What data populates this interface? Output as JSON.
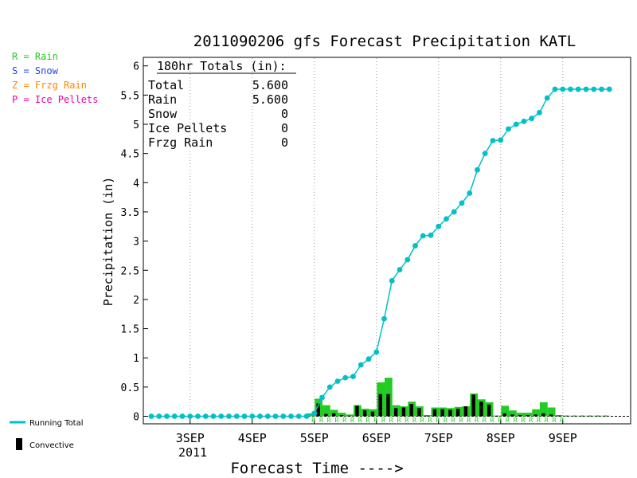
{
  "chart_data": {
    "type": "bar",
    "title": "2011090206 gfs Forecast Precipitation KATL",
    "xlabel": "Forecast Time ---->",
    "ylabel": "Precipitation (in)",
    "ylim": [
      0,
      6.2
    ],
    "y_ticks": [
      "0",
      "0.5",
      "1",
      "1.5",
      "2",
      "2.5",
      "3",
      "3.5",
      "4",
      "4.5",
      "5",
      "5.5",
      "6"
    ],
    "x_ticks": [
      {
        "label": "3SEP",
        "hour": 18
      },
      {
        "label": "4SEP",
        "hour": 42
      },
      {
        "label": "5SEP",
        "hour": 66
      },
      {
        "label": "6SEP",
        "hour": 90
      },
      {
        "label": "7SEP",
        "hour": 114
      },
      {
        "label": "8SEP",
        "hour": 138
      },
      {
        "label": "9SEP",
        "hour": 162
      }
    ],
    "year_label": "2011",
    "grid": "dotted vertical at day ticks",
    "legend_types": [
      {
        "letter": "R",
        "name": "Rain",
        "color": "#22cc22"
      },
      {
        "letter": "S",
        "name": "Snow",
        "color": "#2244ee"
      },
      {
        "letter": "Z",
        "name": "Frzg Rain",
        "color": "#ff8800"
      },
      {
        "letter": "P",
        "name": "Ice Pellets",
        "color": "#ee00aa"
      }
    ],
    "legend_lines": {
      "running_total": "Running Total",
      "convective": "Convective",
      "running_total_color": "#00c0c8"
    },
    "totals_box": {
      "header": "180hr Totals (in):",
      "rows": [
        {
          "name": "Total",
          "value": "5.600"
        },
        {
          "name": "Rain",
          "value": "5.600"
        },
        {
          "name": "Snow",
          "value": "0"
        },
        {
          "name": "Ice Pellets",
          "value": "0"
        },
        {
          "name": "Frzg Rain",
          "value": "0"
        }
      ]
    },
    "hours": [
      3,
      6,
      9,
      12,
      15,
      18,
      21,
      24,
      27,
      30,
      33,
      36,
      39,
      42,
      45,
      48,
      51,
      54,
      57,
      60,
      63,
      66,
      69,
      72,
      75,
      78,
      81,
      84,
      87,
      90,
      93,
      96,
      99,
      102,
      105,
      108,
      111,
      114,
      117,
      120,
      123,
      126,
      129,
      132,
      135,
      138,
      141,
      144,
      147,
      150,
      153,
      156,
      159,
      162,
      165,
      168,
      171,
      174,
      177,
      180
    ],
    "series": [
      {
        "name": "Running Total",
        "values": [
          0,
          0,
          0,
          0,
          0,
          0,
          0,
          0,
          0,
          0,
          0,
          0,
          0,
          0,
          0,
          0,
          0,
          0,
          0,
          0,
          0,
          0.05,
          0.32,
          0.5,
          0.6,
          0.66,
          0.68,
          0.88,
          0.98,
          1.1,
          1.67,
          2.32,
          2.51,
          2.68,
          2.92,
          3.09,
          3.1,
          3.25,
          3.38,
          3.5,
          3.65,
          3.82,
          4.22,
          4.5,
          4.72,
          4.73,
          4.92,
          5.0,
          5.05,
          5.1,
          5.2,
          5.45,
          5.6,
          5.6,
          5.6,
          5.6,
          5.6,
          5.6,
          5.6,
          5.6
        ]
      },
      {
        "name": "Rain",
        "values": [
          0,
          0,
          0,
          0,
          0,
          0,
          0,
          0,
          0,
          0,
          0,
          0,
          0,
          0,
          0,
          0,
          0,
          0,
          0,
          0,
          0,
          0.05,
          0.3,
          0.19,
          0.11,
          0.06,
          0.03,
          0.19,
          0.13,
          0.12,
          0.58,
          0.66,
          0.19,
          0.17,
          0.25,
          0.17,
          0.02,
          0.15,
          0.15,
          0.14,
          0.16,
          0.17,
          0.39,
          0.29,
          0.24,
          0.01,
          0.18,
          0.1,
          0.06,
          0.06,
          0.12,
          0.24,
          0.15,
          0.02,
          0.01,
          0.01,
          0.01,
          0.01,
          0.01,
          0.01
        ]
      },
      {
        "name": "Convective",
        "values": [
          0,
          0,
          0,
          0,
          0,
          0,
          0,
          0,
          0,
          0,
          0,
          0,
          0,
          0,
          0,
          0,
          0,
          0,
          0,
          0,
          0,
          0,
          0.22,
          0.04,
          0.05,
          0.02,
          0.01,
          0.18,
          0.1,
          0.08,
          0.38,
          0.38,
          0.14,
          0.15,
          0.21,
          0.14,
          0.01,
          0.12,
          0.12,
          0.11,
          0.13,
          0.17,
          0.37,
          0.25,
          0.2,
          0.01,
          0.05,
          0.03,
          0.02,
          0.02,
          0.03,
          0.05,
          0.03,
          0.01,
          0.01,
          0.01,
          0.01,
          0.01,
          0.01,
          0.01
        ]
      }
    ],
    "type_markers": {
      "letter": "R",
      "from_hour": 66,
      "to_hour": 162
    }
  }
}
